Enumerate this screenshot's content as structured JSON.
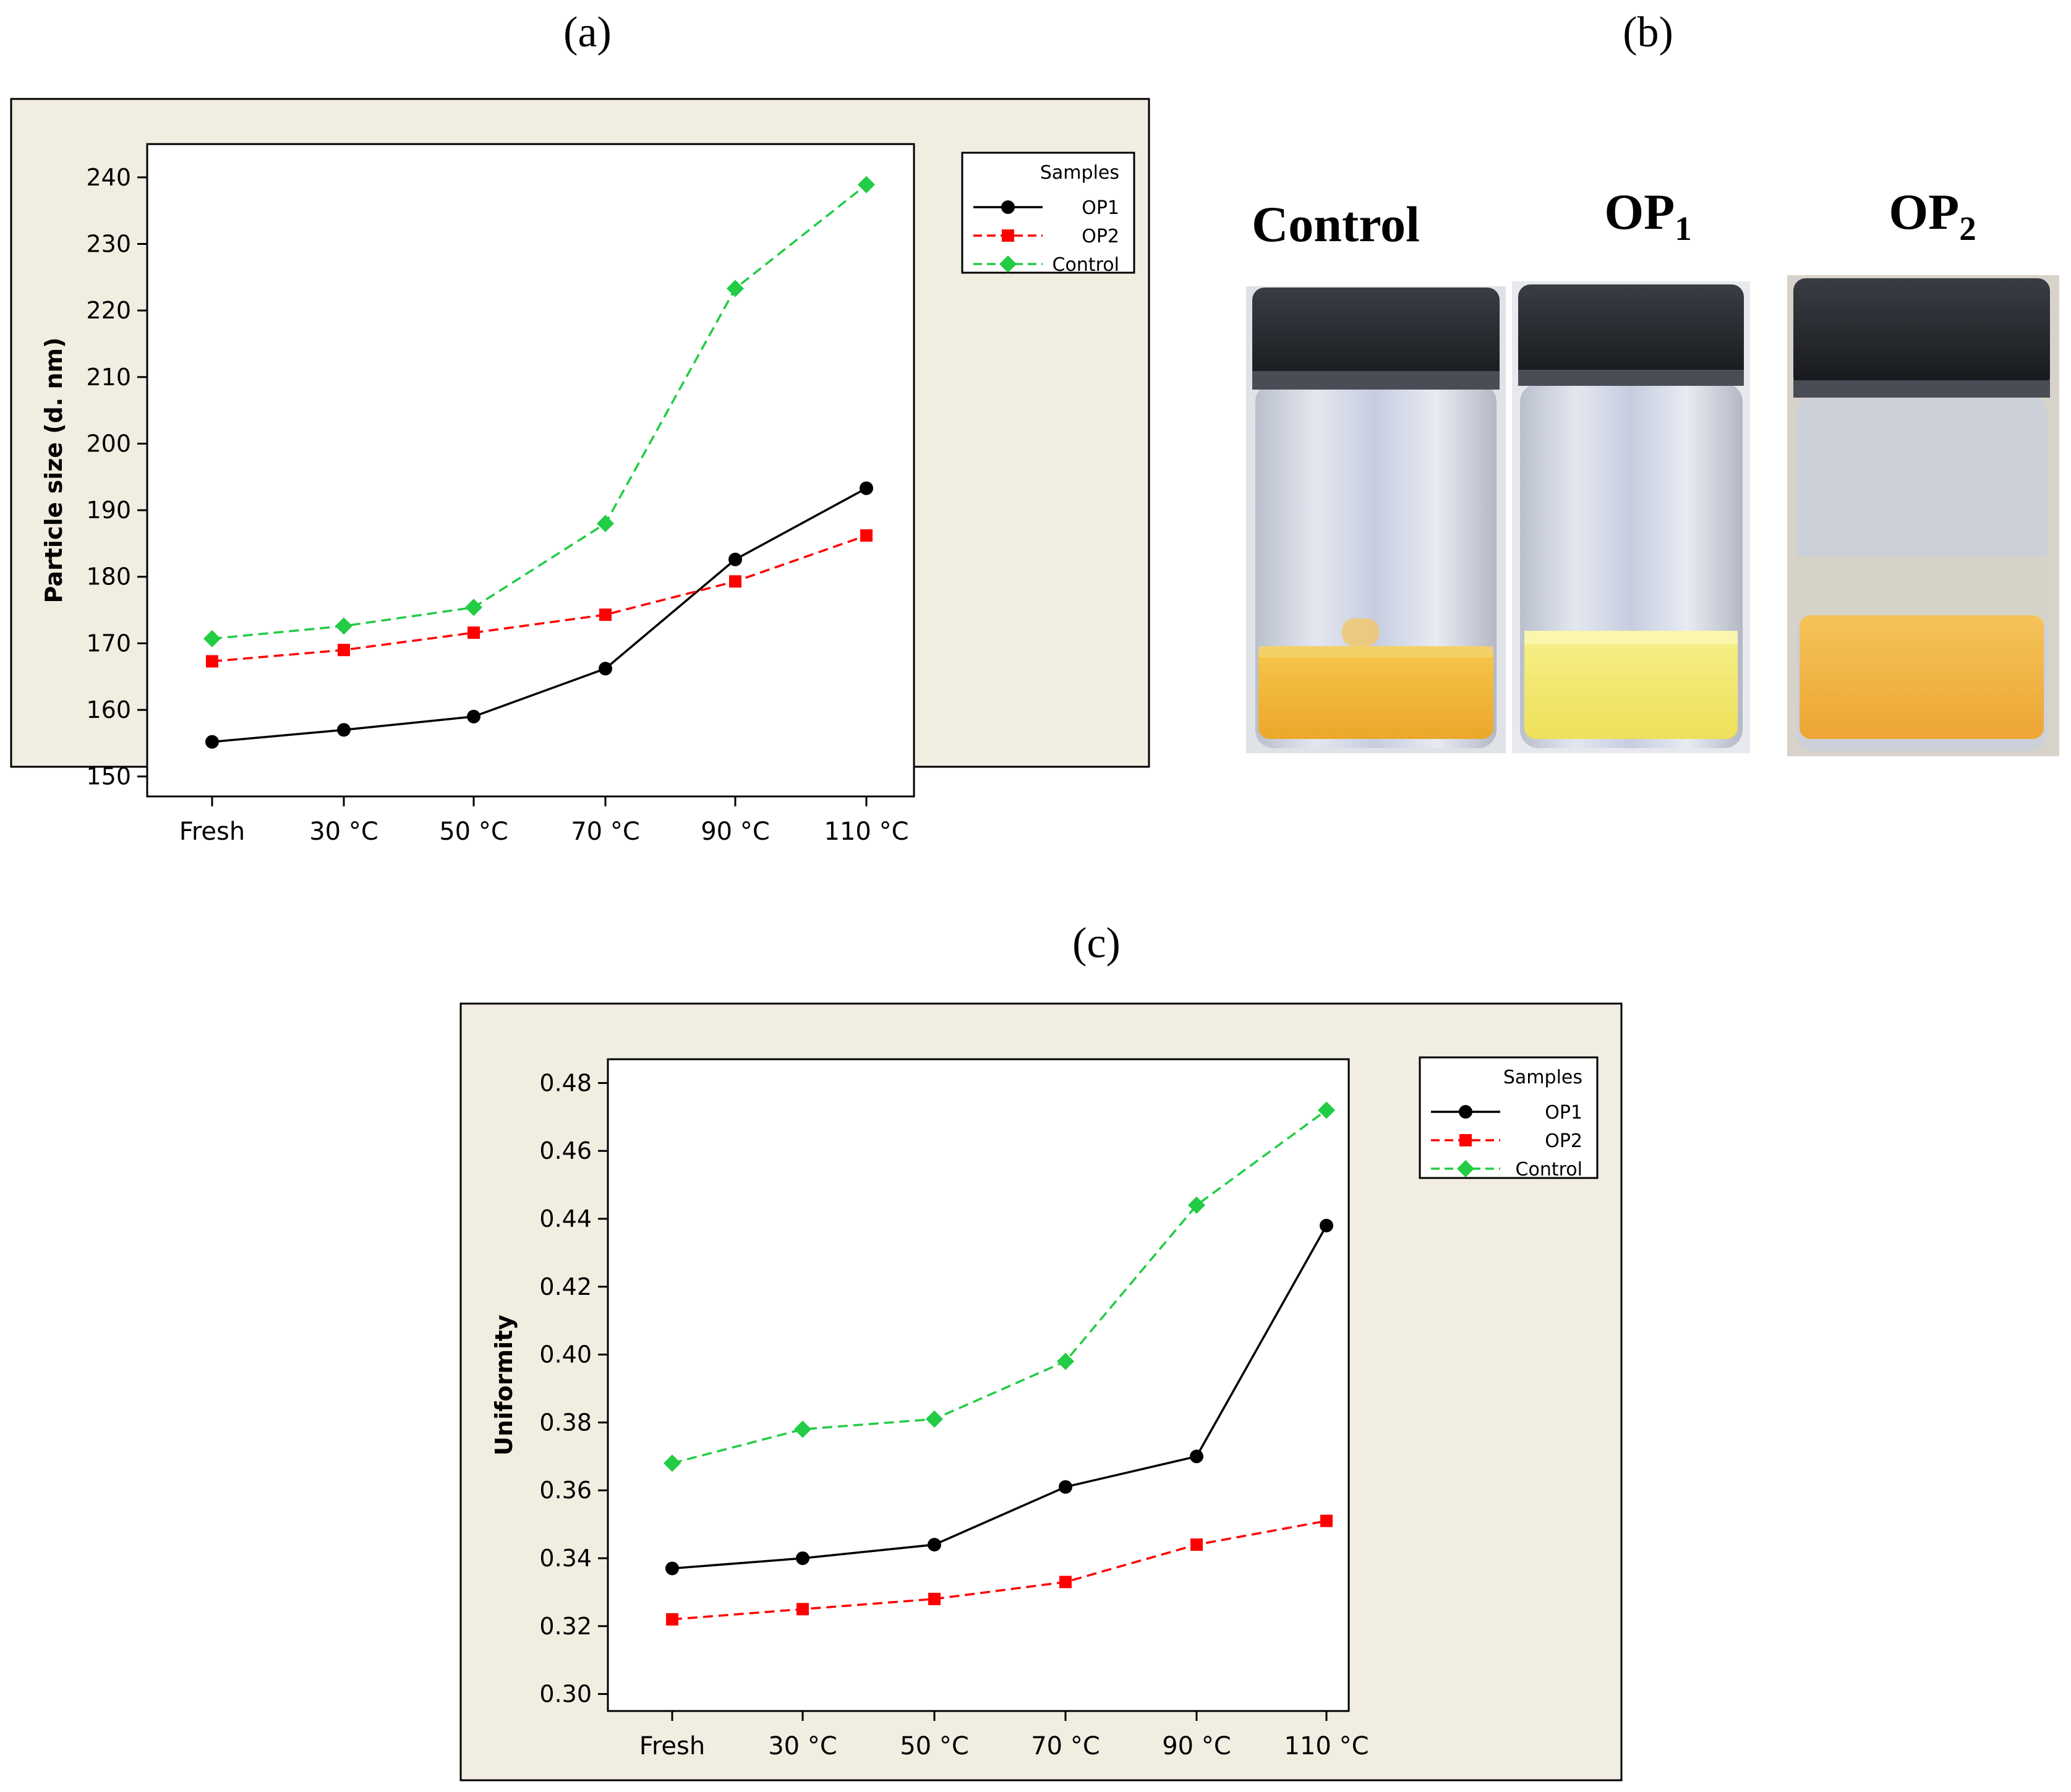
{
  "panel_labels": {
    "a": "(a)",
    "b": "(b)",
    "c": "(c)"
  },
  "colors": {
    "op1": "#000000",
    "op2": "#ff0000",
    "control": "#22cc44",
    "frame_bg": "#f2ede1"
  },
  "photo": {
    "labels": [
      {
        "text": "Control",
        "sub": ""
      },
      {
        "text": "OP",
        "sub": "1"
      },
      {
        "text": "OP",
        "sub": "2"
      }
    ]
  },
  "chart_data": [
    {
      "id": "a",
      "type": "line",
      "title": "",
      "xlabel": "",
      "ylabel": "Particle size (d. nm)",
      "categories": [
        "Fresh",
        "30 °C",
        "50 °C",
        "70 °C",
        "90 °C",
        "110 °C"
      ],
      "ylim": [
        147,
        245
      ],
      "yticks": [
        150,
        160,
        170,
        180,
        190,
        200,
        210,
        220,
        230,
        240
      ],
      "ytick_labels": [
        "150",
        "160",
        "170",
        "180",
        "190",
        "200",
        "210",
        "220",
        "230",
        "240"
      ],
      "legend": {
        "title": "Samples",
        "position": "top-right"
      },
      "series": [
        {
          "name": "OP1",
          "key": "op1",
          "marker": "circle",
          "dash": "solid",
          "values": [
            155.2,
            157.0,
            159.0,
            166.2,
            182.6,
            193.3
          ]
        },
        {
          "name": "OP2",
          "key": "op2",
          "marker": "square",
          "dash": "dashed",
          "values": [
            167.3,
            169.0,
            171.6,
            174.3,
            179.3,
            186.2
          ]
        },
        {
          "name": "Control",
          "key": "control",
          "marker": "diamond",
          "dash": "dashed",
          "values": [
            170.7,
            172.6,
            175.4,
            188.0,
            223.3,
            238.9
          ]
        }
      ]
    },
    {
      "id": "c",
      "type": "line",
      "title": "",
      "xlabel": "",
      "ylabel": "Uniformity",
      "categories": [
        "Fresh",
        "30 °C",
        "50 °C",
        "70 °C",
        "90 °C",
        "110 °C"
      ],
      "ylim": [
        0.295,
        0.487
      ],
      "yticks": [
        0.3,
        0.32,
        0.34,
        0.36,
        0.38,
        0.4,
        0.42,
        0.44,
        0.46,
        0.48
      ],
      "ytick_labels": [
        "0.30",
        "0.32",
        "0.34",
        "0.36",
        "0.38",
        "0.40",
        "0.42",
        "0.44",
        "0.46",
        "0.48"
      ],
      "legend": {
        "title": "Samples",
        "position": "top-right"
      },
      "series": [
        {
          "name": "OP1",
          "key": "op1",
          "marker": "circle",
          "dash": "solid",
          "values": [
            0.337,
            0.34,
            0.344,
            0.361,
            0.37,
            0.438
          ]
        },
        {
          "name": "OP2",
          "key": "op2",
          "marker": "square",
          "dash": "dashed",
          "values": [
            0.322,
            0.325,
            0.328,
            0.333,
            0.344,
            0.351
          ]
        },
        {
          "name": "Control",
          "key": "control",
          "marker": "diamond",
          "dash": "dashed",
          "values": [
            0.368,
            0.378,
            0.381,
            0.398,
            0.444,
            0.472
          ]
        }
      ]
    }
  ]
}
